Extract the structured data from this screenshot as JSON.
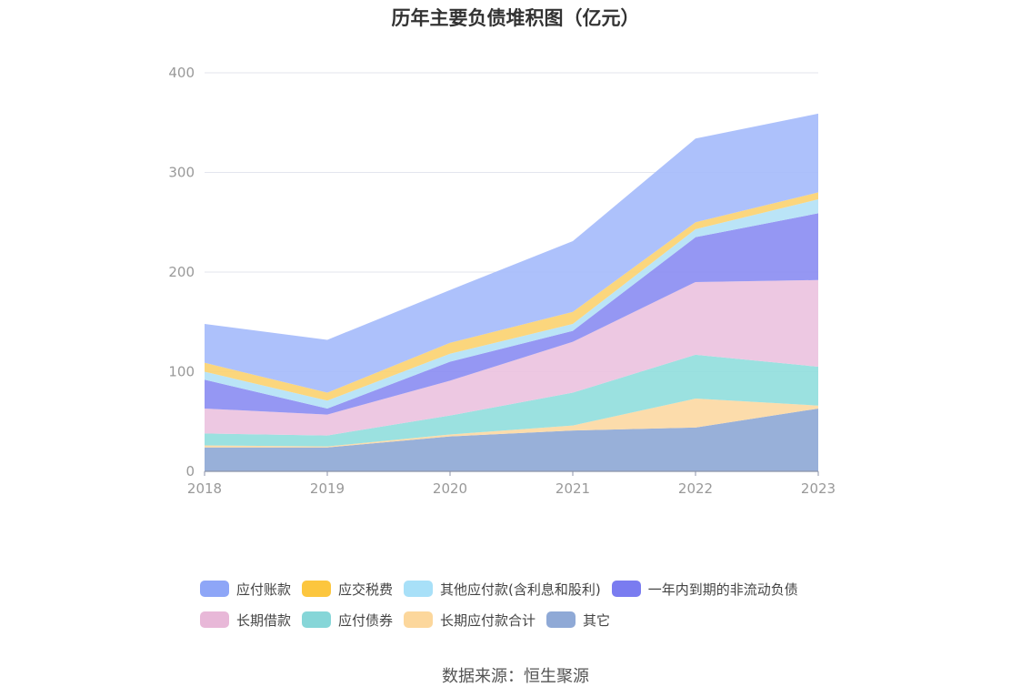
{
  "chart_data": {
    "type": "area",
    "stacked": true,
    "title": "历年主要负债堆积图（亿元）",
    "categories": [
      "2018",
      "2019",
      "2020",
      "2021",
      "2022",
      "2023"
    ],
    "y_ticks": [
      "0",
      "100",
      "200",
      "300",
      "400"
    ],
    "ylim": [
      0,
      400
    ],
    "grid": true,
    "legend_position": "bottom",
    "series": [
      {
        "name": "其它",
        "color": "#8fa9d6",
        "values": [
          24,
          24,
          35,
          41,
          44,
          63
        ]
      },
      {
        "name": "长期应付款合计",
        "color": "#fcd9a4",
        "values": [
          2,
          1,
          2,
          5,
          29,
          3
        ]
      },
      {
        "name": "应付债券",
        "color": "#93dedd",
        "values": [
          12,
          11,
          19,
          33,
          44,
          39
        ]
      },
      {
        "name": "长期借款",
        "color": "#ebc3df",
        "values": [
          25,
          21,
          35,
          51,
          73,
          87
        ]
      },
      {
        "name": "一年内到期的非流动负债",
        "color": "#8c8ef2",
        "values": [
          29,
          6,
          19,
          11,
          45,
          67
        ]
      },
      {
        "name": "其他应付款(含利息和股利)",
        "color": "#b4e2f6",
        "values": [
          8,
          8,
          8,
          7,
          8,
          14
        ]
      },
      {
        "name": "应交税费",
        "color": "#fbd272",
        "values": [
          9,
          8,
          11,
          12,
          7,
          7
        ]
      },
      {
        "name": "应付账款",
        "color": "#a6bcfb",
        "values": [
          39,
          53,
          53,
          71,
          84,
          79
        ]
      }
    ]
  },
  "legend": [
    [
      {
        "label": "应付账款",
        "color": "#8ea6f7"
      },
      {
        "label": "应交税费",
        "color": "#fcc63e"
      },
      {
        "label": "其他应付款(含利息和股利)",
        "color": "#a8e0f8"
      },
      {
        "label": "一年内到期的非流动负债",
        "color": "#7a7cf0"
      }
    ],
    [
      {
        "label": "长期借款",
        "color": "#e8b8d8"
      },
      {
        "label": "应付债券",
        "color": "#86d6d8"
      },
      {
        "label": "长期应付款合计",
        "color": "#fcd79c"
      },
      {
        "label": "其它",
        "color": "#8fa9d6"
      }
    ]
  ],
  "source": "数据来源：恒生聚源"
}
